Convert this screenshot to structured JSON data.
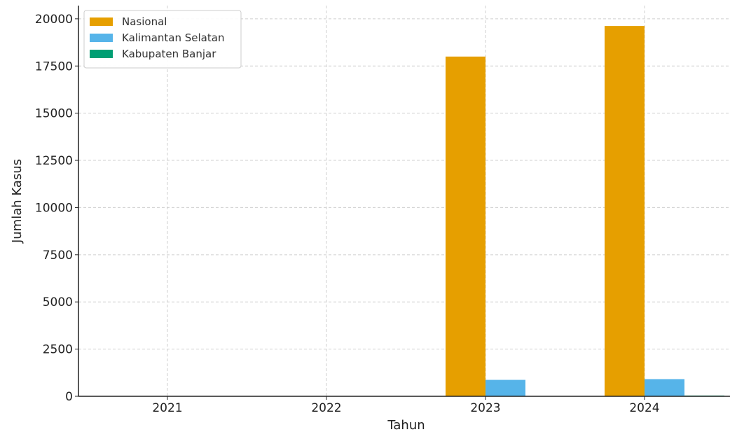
{
  "chart_data": {
    "type": "bar",
    "categories": [
      "2021",
      "2022",
      "2023",
      "2024"
    ],
    "series": [
      {
        "name": "Nasional",
        "values": [
          0,
          0,
          18000,
          19620
        ],
        "color": "#E69F00"
      },
      {
        "name": "Kalimantan Selatan",
        "values": [
          0,
          0,
          870,
          910
        ],
        "color": "#56B4E9"
      },
      {
        "name": "Kabupaten Banjar",
        "values": [
          0,
          0,
          0,
          40
        ],
        "color": "#009E73"
      }
    ],
    "xlabel": "Tahun",
    "ylabel": "Jumlah Kasus",
    "ylim": [
      0,
      20700
    ],
    "yticks": [
      0,
      2500,
      5000,
      7500,
      10000,
      12500,
      15000,
      17500,
      20000
    ],
    "grid": true,
    "legend_position": "top-left"
  }
}
